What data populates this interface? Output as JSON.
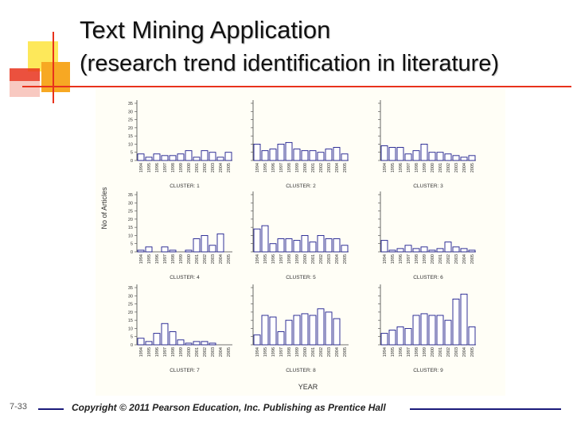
{
  "slide": {
    "title_line1": "Text Mining Application",
    "title_line2": "(research trend identification in literature)",
    "slide_number": "7-33",
    "copyright": "Copyright © 2011 Pearson Education, Inc. Publishing as Prentice Hall",
    "colors": {
      "accent_orange": "#f7a823",
      "accent_yellow": "#fde85a",
      "accent_red": "#e8321c",
      "rule_blue": "#1a1a7a",
      "bar_stroke": "#1a1a8c"
    }
  },
  "chart_data": {
    "type": "bar",
    "ylabel": "No of Articles",
    "xlabel": "YEAR",
    "ylim": [
      0,
      35
    ],
    "yticks": [
      0,
      5,
      10,
      15,
      20,
      25,
      30,
      35
    ],
    "ytick_labels": [
      "0",
      "5",
      "10",
      "15",
      "20",
      "25",
      "30",
      "35"
    ],
    "categories": [
      "1994",
      "1995",
      "1996",
      "1997",
      "1998",
      "1999",
      "2000",
      "2001",
      "2002",
      "2003",
      "2004",
      "2005"
    ],
    "panels": [
      {
        "name": "CLUSTER: 1",
        "values": [
          4,
          2,
          4,
          3,
          3,
          4,
          6,
          2,
          6,
          5,
          2,
          5
        ]
      },
      {
        "name": "CLUSTER: 2",
        "values": [
          10,
          6,
          7,
          10,
          11,
          7,
          6,
          6,
          5,
          7,
          8,
          4
        ]
      },
      {
        "name": "CLUSTER: 3",
        "values": [
          9,
          8,
          8,
          4,
          6,
          10,
          5,
          5,
          4,
          3,
          2,
          3
        ]
      },
      {
        "name": "CLUSTER: 4",
        "values": [
          1,
          3,
          0,
          3,
          1,
          0,
          1,
          8,
          10,
          4,
          11,
          0
        ]
      },
      {
        "name": "CLUSTER: 5",
        "values": [
          14,
          16,
          5,
          8,
          8,
          7,
          10,
          6,
          10,
          8,
          8,
          4
        ]
      },
      {
        "name": "CLUSTER: 6",
        "values": [
          7,
          1,
          2,
          4,
          2,
          3,
          1,
          2,
          6,
          3,
          2,
          1
        ]
      },
      {
        "name": "CLUSTER: 7",
        "values": [
          4,
          2,
          7,
          13,
          8,
          3,
          1,
          2,
          2,
          1,
          0,
          0
        ]
      },
      {
        "name": "CLUSTER: 8",
        "values": [
          6,
          18,
          17,
          8,
          15,
          18,
          19,
          18,
          22,
          20,
          16,
          0
        ]
      },
      {
        "name": "CLUSTER: 9",
        "values": [
          7,
          9,
          11,
          10,
          18,
          19,
          18,
          18,
          15,
          28,
          31,
          11
        ]
      }
    ]
  }
}
